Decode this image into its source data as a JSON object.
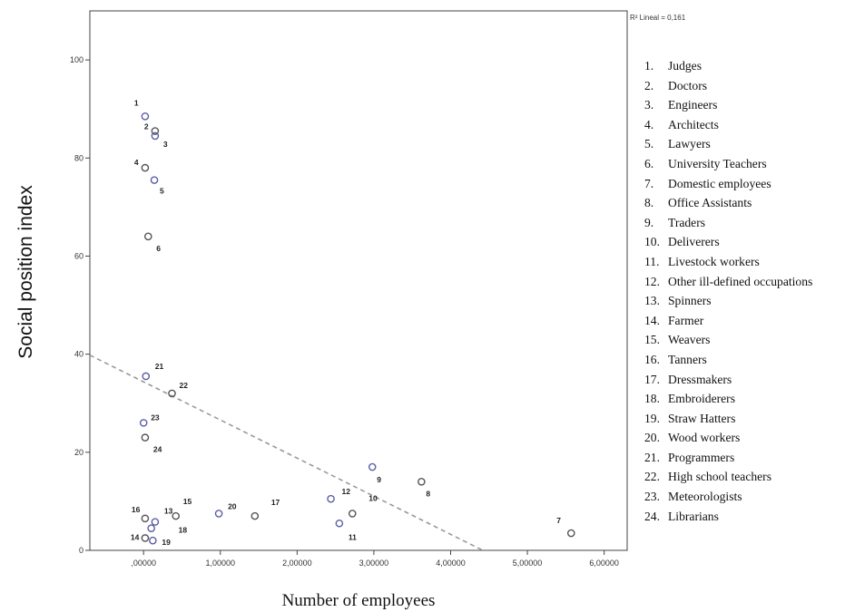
{
  "chart_data": {
    "type": "scatter",
    "xlabel": "Number of employees",
    "ylabel": "Social position index",
    "xlim": [
      -0.7,
      6.3
    ],
    "ylim": [
      0,
      110
    ],
    "x_ticks": [
      0,
      1,
      2,
      3,
      4,
      5,
      6
    ],
    "x_tick_labels": [
      ",00000",
      "1,00000",
      "2,00000",
      "3,00000",
      "4,00000",
      "5,00000",
      "6,00000"
    ],
    "y_ticks": [
      0,
      20,
      40,
      60,
      80,
      100
    ],
    "y_tick_labels": [
      "0",
      "20",
      "40",
      "60",
      "80",
      "100"
    ],
    "fit_line": {
      "type": "linear",
      "points": [
        [
          -0.7,
          39.8
        ],
        [
          4.42,
          0
        ]
      ],
      "annotation": "R² Lineal = 0,161"
    },
    "points": [
      {
        "label": "1",
        "x": 0.02,
        "y": 88.5
      },
      {
        "label": "2",
        "x": 0.15,
        "y": 85.5
      },
      {
        "label": "3",
        "x": 0.15,
        "y": 84.5
      },
      {
        "label": "4",
        "x": 0.02,
        "y": 78.0
      },
      {
        "label": "5",
        "x": 0.14,
        "y": 75.5
      },
      {
        "label": "6",
        "x": 0.06,
        "y": 64.0
      },
      {
        "label": "21",
        "x": 0.03,
        "y": 35.5
      },
      {
        "label": "22",
        "x": 0.37,
        "y": 32.0
      },
      {
        "label": "23",
        "x": 0.0,
        "y": 26.0
      },
      {
        "label": "24",
        "x": 0.02,
        "y": 23.0
      },
      {
        "label": "9",
        "x": 2.98,
        "y": 17.0
      },
      {
        "label": "8",
        "x": 3.62,
        "y": 14.0
      },
      {
        "label": "12",
        "x": 2.44,
        "y": 10.5
      },
      {
        "label": "10",
        "x": 2.72,
        "y": 7.5
      },
      {
        "label": "11",
        "x": 2.55,
        "y": 5.5
      },
      {
        "label": "17",
        "x": 1.45,
        "y": 7.0
      },
      {
        "label": "20",
        "x": 0.98,
        "y": 7.5
      },
      {
        "label": "15",
        "x": 0.42,
        "y": 7.0
      },
      {
        "label": "13",
        "x": 0.15,
        "y": 5.8
      },
      {
        "label": "16",
        "x": 0.02,
        "y": 6.5
      },
      {
        "label": "18",
        "x": 0.1,
        "y": 4.5
      },
      {
        "label": "14",
        "x": 0.02,
        "y": 2.5
      },
      {
        "label": "19",
        "x": 0.12,
        "y": 2.0
      },
      {
        "label": "7",
        "x": 5.57,
        "y": 3.5
      }
    ],
    "legend": [
      {
        "num": "1.",
        "name": "Judges"
      },
      {
        "num": "2.",
        "name": "Doctors"
      },
      {
        "num": "3.",
        "name": "Engineers"
      },
      {
        "num": "4.",
        "name": "Architects"
      },
      {
        "num": "5.",
        "name": "Lawyers"
      },
      {
        "num": "6.",
        "name": "University Teachers"
      },
      {
        "num": "7.",
        "name": "Domestic employees"
      },
      {
        "num": "8.",
        "name": "Office Assistants"
      },
      {
        "num": "9.",
        "name": "Traders"
      },
      {
        "num": "10.",
        "name": "Deliverers"
      },
      {
        "num": "11.",
        "name": "Livestock workers"
      },
      {
        "num": "12.",
        "name": "Other ill-defined occupations"
      },
      {
        "num": "13.",
        "name": "Spinners"
      },
      {
        "num": "14.",
        "name": "Farmer"
      },
      {
        "num": "15.",
        "name": "Weavers"
      },
      {
        "num": "16.",
        "name": "Tanners"
      },
      {
        "num": "17.",
        "name": "Dressmakers"
      },
      {
        "num": "18.",
        "name": "Embroiderers"
      },
      {
        "num": "19.",
        "name": "Straw Hatters"
      },
      {
        "num": "20.",
        "name": "Wood workers"
      },
      {
        "num": "21.",
        "name": "Programmers"
      },
      {
        "num": "22.",
        "name": "High school teachers"
      },
      {
        "num": "23.",
        "name": "Meteorologists"
      },
      {
        "num": "24.",
        "name": "Librarians"
      }
    ],
    "marker_colors": [
      "#5b5ea6",
      "#555555"
    ],
    "fit_line_color": "#999999",
    "grid": false
  }
}
